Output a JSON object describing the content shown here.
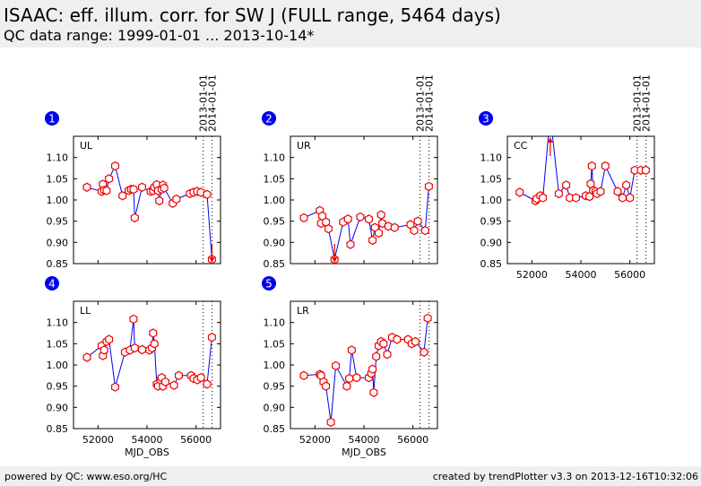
{
  "header": {
    "title": "ISAAC: eff. illum. corr. for SW J (FULL range, 5464 days)",
    "subtitle": "QC data range: 1999-01-01 ... 2013-10-14*"
  },
  "footer": {
    "left": "powered by QC: www.eso.org/HC",
    "right": "created by trendPlotter v3.3 on 2013-12-16T10:32:06"
  },
  "colors": {
    "line": "#0000ee",
    "marker": "#ee0000",
    "badge": "#0000ee"
  },
  "chart_data": [
    {
      "type": "line",
      "index": "1",
      "label": "UL",
      "xlabel": "",
      "xlim": [
        51000,
        57000
      ],
      "ylim": [
        0.85,
        1.15
      ],
      "xticks": [
        52000,
        54000,
        56000
      ],
      "xtick_labels": [
        "",
        "",
        ""
      ],
      "yticks": [
        0.85,
        0.9,
        0.95,
        1.0,
        1.05,
        1.1
      ],
      "ytick_labels": [
        "0.85",
        "0.90",
        "0.95",
        "1.00",
        "1.05",
        "1.10"
      ],
      "vlines": [
        {
          "x": 56293,
          "label": "2013-01-01"
        },
        {
          "x": 56658,
          "label": "2014-01-01"
        }
      ],
      "x": [
        51550,
        52150,
        52200,
        52250,
        52350,
        52450,
        52700,
        53000,
        53250,
        53350,
        53450,
        53500,
        53800,
        54150,
        54250,
        54300,
        54400,
        54450,
        54500,
        54600,
        54650,
        54700,
        55050,
        55200,
        55750,
        55900,
        56050,
        56200,
        56450,
        56650
      ],
      "y": [
        1.03,
        1.02,
        1.037,
        1.023,
        1.022,
        1.05,
        1.08,
        1.01,
        1.022,
        1.025,
        1.025,
        0.958,
        1.03,
        1.02,
        1.022,
        1.03,
        1.036,
        1.022,
        0.998,
        1.025,
        1.035,
        1.028,
        0.992,
        1.002,
        1.015,
        1.018,
        1.02,
        1.018,
        1.013,
        0.86
      ],
      "arrows": [
        {
          "x": 56650,
          "direction": "down"
        }
      ]
    },
    {
      "type": "line",
      "index": "2",
      "label": "UR",
      "xlabel": "",
      "xlim": [
        51000,
        57000
      ],
      "ylim": [
        0.85,
        1.15
      ],
      "xticks": [
        52000,
        54000,
        56000
      ],
      "xtick_labels": [
        "",
        "",
        ""
      ],
      "yticks": [
        0.85,
        0.9,
        0.95,
        1.0,
        1.05,
        1.1
      ],
      "ytick_labels": [
        "0.85",
        "0.90",
        "0.95",
        "1.00",
        "1.05",
        "1.10"
      ],
      "vlines": [
        {
          "x": 56293,
          "label": "2013-01-01"
        },
        {
          "x": 56658,
          "label": "2014-01-01"
        }
      ],
      "x": [
        51550,
        52200,
        52250,
        52300,
        52450,
        52550,
        52800,
        53150,
        53350,
        53450,
        53850,
        54200,
        54350,
        54450,
        54600,
        54700,
        54750,
        55000,
        55250,
        55900,
        56050,
        56200,
        56500,
        56650
      ],
      "y": [
        0.958,
        0.975,
        0.945,
        0.962,
        0.948,
        0.932,
        0.86,
        0.948,
        0.955,
        0.895,
        0.96,
        0.955,
        0.905,
        0.935,
        0.922,
        0.965,
        0.945,
        0.938,
        0.935,
        0.942,
        0.928,
        0.95,
        0.928,
        1.032
      ],
      "arrows": [
        {
          "x": 52800,
          "direction": "down"
        }
      ]
    },
    {
      "type": "line",
      "index": "3",
      "label": "CC",
      "xlabel": "",
      "xlim": [
        51000,
        57000
      ],
      "ylim": [
        0.85,
        1.15
      ],
      "xticks": [
        52000,
        54000,
        56000
      ],
      "xtick_labels": [
        "52000",
        "54000",
        "56000"
      ],
      "yticks": [
        0.85,
        0.9,
        0.95,
        1.0,
        1.05,
        1.1
      ],
      "ytick_labels": [
        "0.85",
        "0.90",
        "0.95",
        "1.00",
        "1.05",
        "1.10"
      ],
      "vlines": [
        {
          "x": 56293,
          "label": "2013-01-01"
        },
        {
          "x": 56658,
          "label": "2014-01-01"
        }
      ],
      "x": [
        51500,
        52150,
        52200,
        52350,
        52450,
        52750,
        53100,
        53400,
        53550,
        53800,
        54200,
        54350,
        54400,
        54450,
        54500,
        54600,
        54650,
        54800,
        55000,
        55500,
        55700,
        55850,
        56000,
        56200,
        56450,
        56650
      ],
      "y": [
        1.018,
        0.998,
        1.003,
        1.01,
        1.005,
        1.2,
        1.015,
        1.035,
        1.005,
        1.005,
        1.01,
        1.008,
        1.038,
        1.08,
        1.022,
        1.02,
        1.015,
        1.02,
        1.08,
        1.02,
        1.005,
        1.035,
        1.005,
        1.07,
        1.07,
        1.07
      ],
      "arrows": [
        {
          "x": 52750,
          "direction": "up"
        }
      ]
    },
    {
      "type": "line",
      "index": "4",
      "label": "LL",
      "xlabel": "MJD_OBS",
      "xlim": [
        51000,
        57000
      ],
      "ylim": [
        0.85,
        1.15
      ],
      "xticks": [
        52000,
        54000,
        56000
      ],
      "xtick_labels": [
        "52000",
        "54000",
        "56000"
      ],
      "yticks": [
        0.85,
        0.9,
        0.95,
        1.0,
        1.05,
        1.1
      ],
      "ytick_labels": [
        "0.85",
        "0.90",
        "0.95",
        "1.00",
        "1.05",
        "1.10"
      ],
      "vlines": [
        {
          "x": 56293,
          "label": ""
        },
        {
          "x": 56658,
          "label": ""
        }
      ],
      "x": [
        51550,
        52150,
        52200,
        52250,
        52350,
        52450,
        52700,
        53100,
        53300,
        53450,
        53500,
        53800,
        54100,
        54200,
        54250,
        54300,
        54400,
        54450,
        54550,
        54600,
        54650,
        54750,
        55100,
        55300,
        55800,
        55900,
        56050,
        56200,
        56450,
        56650
      ],
      "y": [
        1.018,
        1.045,
        1.022,
        1.035,
        1.055,
        1.06,
        0.948,
        1.03,
        1.035,
        1.108,
        1.04,
        1.036,
        1.035,
        1.04,
        1.075,
        1.05,
        0.955,
        0.95,
        0.965,
        0.97,
        0.95,
        0.96,
        0.952,
        0.975,
        0.975,
        0.968,
        0.965,
        0.97,
        0.955,
        1.065
      ],
      "arrows": []
    },
    {
      "type": "line",
      "index": "5",
      "label": "LR",
      "xlabel": "MJD_OBS",
      "xlim": [
        51000,
        57000
      ],
      "ylim": [
        0.85,
        1.15
      ],
      "xticks": [
        52000,
        54000,
        56000
      ],
      "xtick_labels": [
        "52000",
        "54000",
        "56000"
      ],
      "yticks": [
        0.85,
        0.9,
        0.95,
        1.0,
        1.05,
        1.1
      ],
      "ytick_labels": [
        "0.85",
        "0.90",
        "0.95",
        "1.00",
        "1.05",
        "1.10"
      ],
      "vlines": [
        {
          "x": 56293,
          "label": ""
        },
        {
          "x": 56658,
          "label": ""
        }
      ],
      "x": [
        51550,
        52200,
        52250,
        52350,
        52450,
        52650,
        52850,
        53300,
        53400,
        53500,
        53700,
        54200,
        54300,
        54350,
        54400,
        54500,
        54600,
        54700,
        54800,
        54950,
        55150,
        55350,
        55800,
        55950,
        56100,
        56450,
        56600
      ],
      "y": [
        0.975,
        0.978,
        0.975,
        0.96,
        0.95,
        0.865,
        0.998,
        0.95,
        0.968,
        1.035,
        0.97,
        0.97,
        0.98,
        0.99,
        0.935,
        1.02,
        1.045,
        1.055,
        1.05,
        1.025,
        1.065,
        1.06,
        1.06,
        1.05,
        1.055,
        1.03,
        1.11
      ],
      "arrows": []
    }
  ]
}
